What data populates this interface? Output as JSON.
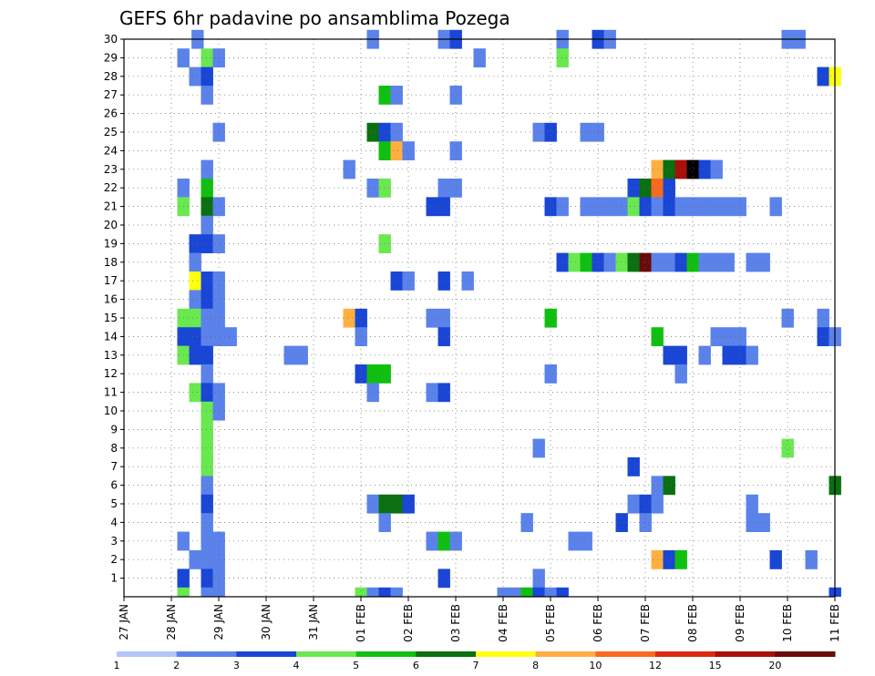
{
  "chart_data": {
    "type": "heatmap",
    "title": "GEFS 6hr padavine po ansamblima Pozega",
    "xlabel": "",
    "ylabel": "",
    "x_ticks": [
      "27 JAN",
      "28 JAN",
      "29 JAN",
      "30 JAN",
      "31 JAN",
      "01 FEB",
      "02 FEB",
      "03 FEB",
      "04 FEB",
      "05 FEB",
      "06 FEB",
      "07 FEB",
      "08 FEB",
      "09 FEB",
      "10 FEB",
      "11 FEB"
    ],
    "y_ticks": [
      1,
      2,
      3,
      4,
      5,
      6,
      7,
      8,
      9,
      10,
      11,
      12,
      13,
      14,
      15,
      16,
      17,
      18,
      19,
      20,
      21,
      22,
      23,
      24,
      25,
      26,
      27,
      28,
      29,
      30
    ],
    "y_range": [
      0,
      30
    ],
    "x_range_days": [
      0,
      15
    ],
    "grid": true,
    "colorbar": {
      "labels": [
        "1",
        "2",
        "3",
        "4",
        "5",
        "6",
        "7",
        "8",
        "10",
        "12",
        "15",
        "20"
      ],
      "colors": [
        "#b4c6fa",
        "#5a82ea",
        "#1a46d6",
        "#6ae850",
        "#10c010",
        "#0a7010",
        "#ffff10",
        "#ffb040",
        "#f86a20",
        "#dc2a10",
        "#a81008",
        "#6a0a0a"
      ]
    },
    "cells": [
      [
        30,
        1.55,
        1
      ],
      [
        30,
        5.25,
        1
      ],
      [
        30,
        6.75,
        1
      ],
      [
        30,
        7.0,
        2
      ],
      [
        30,
        9.25,
        1
      ],
      [
        30,
        10.0,
        2
      ],
      [
        30,
        10.25,
        1
      ],
      [
        30,
        14.0,
        1
      ],
      [
        30,
        14.25,
        1
      ],
      [
        29,
        1.25,
        1
      ],
      [
        29,
        1.75,
        3
      ],
      [
        29,
        2.0,
        1
      ],
      [
        29,
        7.5,
        1
      ],
      [
        29,
        9.25,
        3
      ],
      [
        28,
        1.5,
        1
      ],
      [
        28,
        1.75,
        2
      ],
      [
        28,
        14.75,
        2
      ],
      [
        28,
        15.0,
        6
      ],
      [
        27,
        1.75,
        1
      ],
      [
        27,
        5.5,
        4
      ],
      [
        27,
        5.75,
        1
      ],
      [
        27,
        7.0,
        1
      ],
      [
        25,
        2.0,
        1
      ],
      [
        25,
        5.25,
        5
      ],
      [
        25,
        5.5,
        2
      ],
      [
        25,
        5.75,
        1
      ],
      [
        25,
        8.75,
        1
      ],
      [
        25,
        9.0,
        2
      ],
      [
        25,
        9.75,
        1
      ],
      [
        25,
        10.0,
        1
      ],
      [
        24,
        5.5,
        4
      ],
      [
        24,
        5.75,
        7
      ],
      [
        24,
        6.0,
        1
      ],
      [
        24,
        7.0,
        1
      ],
      [
        23,
        1.75,
        1
      ],
      [
        23,
        4.75,
        1
      ],
      [
        23,
        11.25,
        7
      ],
      [
        23,
        11.5,
        5
      ],
      [
        23,
        11.75,
        10
      ],
      [
        23,
        12.0,
        12
      ],
      [
        23,
        12.25,
        2
      ],
      [
        23,
        12.5,
        1
      ],
      [
        22,
        1.25,
        1
      ],
      [
        22,
        1.75,
        4
      ],
      [
        22,
        5.25,
        1
      ],
      [
        22,
        5.5,
        3
      ],
      [
        22,
        6.75,
        1
      ],
      [
        22,
        7.0,
        1
      ],
      [
        22,
        10.75,
        2
      ],
      [
        22,
        11.0,
        5
      ],
      [
        22,
        11.25,
        8
      ],
      [
        22,
        11.5,
        2
      ],
      [
        21,
        1.25,
        3
      ],
      [
        21,
        1.75,
        5
      ],
      [
        21,
        2.0,
        1
      ],
      [
        21,
        6.5,
        2
      ],
      [
        21,
        6.75,
        2
      ],
      [
        21,
        9.0,
        2
      ],
      [
        21,
        9.25,
        1
      ],
      [
        21,
        9.75,
        1
      ],
      [
        21,
        10.0,
        1
      ],
      [
        21,
        10.25,
        1
      ],
      [
        21,
        10.5,
        1
      ],
      [
        21,
        10.75,
        3
      ],
      [
        21,
        11.0,
        2
      ],
      [
        21,
        11.25,
        1
      ],
      [
        21,
        11.5,
        2
      ],
      [
        21,
        11.75,
        1
      ],
      [
        21,
        12.0,
        1
      ],
      [
        21,
        12.25,
        1
      ],
      [
        21,
        12.5,
        1
      ],
      [
        21,
        12.75,
        1
      ],
      [
        21,
        13.0,
        1
      ],
      [
        21,
        13.75,
        1
      ],
      [
        20,
        1.75,
        1
      ],
      [
        19,
        1.5,
        2
      ],
      [
        19,
        1.75,
        2
      ],
      [
        19,
        2.0,
        1
      ],
      [
        19,
        5.5,
        3
      ],
      [
        18,
        1.5,
        1
      ],
      [
        18,
        9.25,
        2
      ],
      [
        18,
        9.5,
        3
      ],
      [
        18,
        9.75,
        4
      ],
      [
        18,
        10.0,
        2
      ],
      [
        18,
        10.25,
        1
      ],
      [
        18,
        10.5,
        3
      ],
      [
        18,
        10.75,
        5
      ],
      [
        18,
        11.0,
        11
      ],
      [
        18,
        11.25,
        1
      ],
      [
        18,
        11.5,
        1
      ],
      [
        18,
        11.75,
        2
      ],
      [
        18,
        12.0,
        4
      ],
      [
        18,
        12.25,
        1
      ],
      [
        18,
        12.5,
        1
      ],
      [
        18,
        12.75,
        1
      ],
      [
        18,
        13.25,
        1
      ],
      [
        18,
        13.5,
        1
      ],
      [
        17,
        1.5,
        6
      ],
      [
        17,
        1.75,
        2
      ],
      [
        17,
        2.0,
        1
      ],
      [
        17,
        5.75,
        2
      ],
      [
        17,
        6.0,
        1
      ],
      [
        17,
        6.75,
        2
      ],
      [
        17,
        7.25,
        1
      ],
      [
        16,
        1.5,
        1
      ],
      [
        16,
        1.75,
        2
      ],
      [
        16,
        2.0,
        1
      ],
      [
        15,
        1.25,
        3
      ],
      [
        15,
        1.5,
        3
      ],
      [
        15,
        1.75,
        1
      ],
      [
        15,
        2.0,
        1
      ],
      [
        15,
        4.75,
        7
      ],
      [
        15,
        5.0,
        2
      ],
      [
        15,
        6.5,
        1
      ],
      [
        15,
        6.75,
        1
      ],
      [
        15,
        9.0,
        4
      ],
      [
        15,
        14.0,
        1
      ],
      [
        15,
        14.75,
        1
      ],
      [
        14,
        1.25,
        2
      ],
      [
        14,
        1.5,
        2
      ],
      [
        14,
        1.75,
        1
      ],
      [
        14,
        2.0,
        1
      ],
      [
        14,
        2.25,
        1
      ],
      [
        14,
        5.0,
        1
      ],
      [
        14,
        6.75,
        2
      ],
      [
        14,
        11.25,
        4
      ],
      [
        14,
        12.5,
        1
      ],
      [
        14,
        12.75,
        1
      ],
      [
        14,
        13.0,
        1
      ],
      [
        14,
        14.75,
        2
      ],
      [
        14,
        15.0,
        1
      ],
      [
        13,
        1.25,
        3
      ],
      [
        13,
        1.5,
        2
      ],
      [
        13,
        1.75,
        2
      ],
      [
        13,
        3.5,
        1
      ],
      [
        13,
        3.75,
        1
      ],
      [
        13,
        11.5,
        2
      ],
      [
        13,
        11.75,
        2
      ],
      [
        13,
        12.25,
        1
      ],
      [
        13,
        12.75,
        2
      ],
      [
        13,
        13.0,
        2
      ],
      [
        13,
        13.25,
        1
      ],
      [
        12,
        1.75,
        1
      ],
      [
        12,
        5.0,
        2
      ],
      [
        12,
        5.25,
        4
      ],
      [
        12,
        5.5,
        4
      ],
      [
        12,
        9.0,
        1
      ],
      [
        12,
        11.75,
        1
      ],
      [
        11,
        1.5,
        3
      ],
      [
        11,
        1.75,
        2
      ],
      [
        11,
        2.0,
        1
      ],
      [
        11,
        5.25,
        1
      ],
      [
        11,
        6.5,
        1
      ],
      [
        11,
        6.75,
        2
      ],
      [
        10,
        1.75,
        3
      ],
      [
        10,
        2.0,
        1
      ],
      [
        9,
        1.75,
        3
      ],
      [
        8,
        1.75,
        3
      ],
      [
        8,
        8.75,
        1
      ],
      [
        8,
        14.0,
        3
      ],
      [
        7,
        1.75,
        3
      ],
      [
        7,
        10.75,
        2
      ],
      [
        6,
        1.75,
        1
      ],
      [
        6,
        11.25,
        1
      ],
      [
        6,
        11.5,
        5
      ],
      [
        6,
        15.0,
        5
      ],
      [
        5,
        1.75,
        2
      ],
      [
        5,
        5.25,
        1
      ],
      [
        5,
        5.5,
        5
      ],
      [
        5,
        5.75,
        5
      ],
      [
        5,
        6.0,
        2
      ],
      [
        5,
        10.75,
        1
      ],
      [
        5,
        11.0,
        2
      ],
      [
        5,
        11.25,
        1
      ],
      [
        5,
        13.25,
        1
      ],
      [
        4,
        1.75,
        1
      ],
      [
        4,
        5.5,
        1
      ],
      [
        4,
        8.5,
        1
      ],
      [
        4,
        10.5,
        2
      ],
      [
        4,
        11.0,
        1
      ],
      [
        4,
        13.25,
        1
      ],
      [
        4,
        13.5,
        1
      ],
      [
        3,
        1.25,
        1
      ],
      [
        3,
        1.75,
        1
      ],
      [
        3,
        2.0,
        1
      ],
      [
        3,
        6.5,
        1
      ],
      [
        3,
        6.75,
        4
      ],
      [
        3,
        7.0,
        1
      ],
      [
        3,
        9.5,
        1
      ],
      [
        3,
        9.75,
        1
      ],
      [
        2,
        1.5,
        1
      ],
      [
        2,
        1.75,
        1
      ],
      [
        2,
        2.0,
        1
      ],
      [
        2,
        11.25,
        7
      ],
      [
        2,
        11.5,
        2
      ],
      [
        2,
        11.75,
        4
      ],
      [
        2,
        13.75,
        2
      ],
      [
        2,
        14.5,
        1
      ],
      [
        1,
        1.25,
        2
      ],
      [
        1,
        1.75,
        2
      ],
      [
        1,
        2.0,
        1
      ],
      [
        1,
        6.75,
        2
      ],
      [
        1,
        8.75,
        1
      ],
      [
        0,
        1.25,
        3
      ],
      [
        0,
        1.75,
        1
      ],
      [
        0,
        2.0,
        1
      ],
      [
        0,
        5.0,
        3
      ],
      [
        0,
        5.25,
        1
      ],
      [
        0,
        5.5,
        2
      ],
      [
        0,
        5.75,
        1
      ],
      [
        0,
        8.0,
        1
      ],
      [
        0,
        8.25,
        1
      ],
      [
        0,
        8.5,
        4
      ],
      [
        0,
        8.75,
        2
      ],
      [
        0,
        9.0,
        1
      ],
      [
        0,
        9.25,
        2
      ],
      [
        0,
        15.0,
        2
      ]
    ]
  }
}
